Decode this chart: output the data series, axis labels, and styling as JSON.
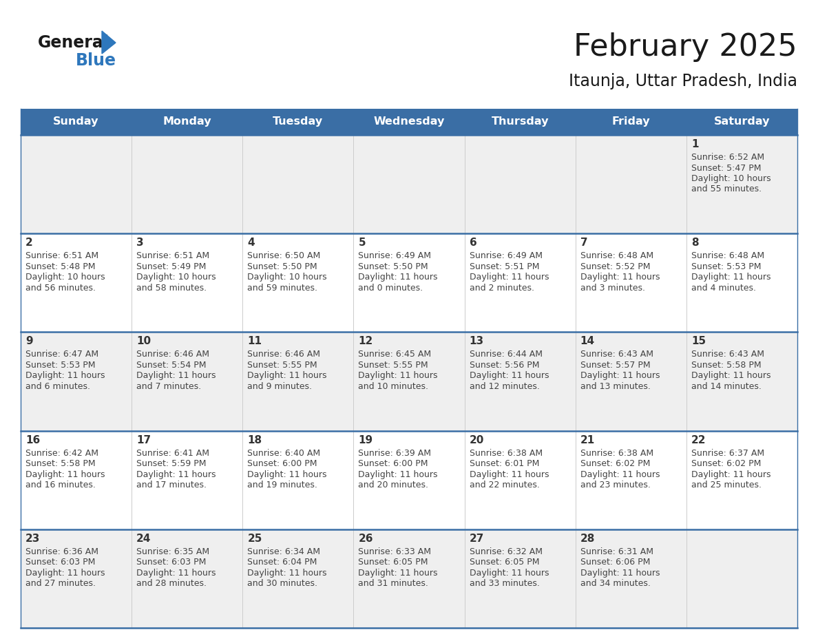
{
  "title": "February 2025",
  "subtitle": "Itaunja, Uttar Pradesh, India",
  "days_of_week": [
    "Sunday",
    "Monday",
    "Tuesday",
    "Wednesday",
    "Thursday",
    "Friday",
    "Saturday"
  ],
  "header_bg": "#3a6ea5",
  "header_text": "#ffffff",
  "row_bg_even": "#efefef",
  "row_bg_odd": "#ffffff",
  "day_num_color": "#333333",
  "info_text_color": "#444444",
  "border_color": "#3a6ea5",
  "title_color": "#1a1a1a",
  "subtitle_color": "#1a1a1a",
  "logo_general_color": "#1a1a1a",
  "logo_blue_color": "#2e77bc",
  "calendar_data": [
    [
      null,
      null,
      null,
      null,
      null,
      null,
      {
        "day": 1,
        "sunrise": "6:52 AM",
        "sunset": "5:47 PM",
        "daylight_h": "10 hours",
        "daylight_m": "and 55 minutes."
      }
    ],
    [
      {
        "day": 2,
        "sunrise": "6:51 AM",
        "sunset": "5:48 PM",
        "daylight_h": "10 hours",
        "daylight_m": "and 56 minutes."
      },
      {
        "day": 3,
        "sunrise": "6:51 AM",
        "sunset": "5:49 PM",
        "daylight_h": "10 hours",
        "daylight_m": "and 58 minutes."
      },
      {
        "day": 4,
        "sunrise": "6:50 AM",
        "sunset": "5:50 PM",
        "daylight_h": "10 hours",
        "daylight_m": "and 59 minutes."
      },
      {
        "day": 5,
        "sunrise": "6:49 AM",
        "sunset": "5:50 PM",
        "daylight_h": "11 hours",
        "daylight_m": "and 0 minutes."
      },
      {
        "day": 6,
        "sunrise": "6:49 AM",
        "sunset": "5:51 PM",
        "daylight_h": "11 hours",
        "daylight_m": "and 2 minutes."
      },
      {
        "day": 7,
        "sunrise": "6:48 AM",
        "sunset": "5:52 PM",
        "daylight_h": "11 hours",
        "daylight_m": "and 3 minutes."
      },
      {
        "day": 8,
        "sunrise": "6:48 AM",
        "sunset": "5:53 PM",
        "daylight_h": "11 hours",
        "daylight_m": "and 4 minutes."
      }
    ],
    [
      {
        "day": 9,
        "sunrise": "6:47 AM",
        "sunset": "5:53 PM",
        "daylight_h": "11 hours",
        "daylight_m": "and 6 minutes."
      },
      {
        "day": 10,
        "sunrise": "6:46 AM",
        "sunset": "5:54 PM",
        "daylight_h": "11 hours",
        "daylight_m": "and 7 minutes."
      },
      {
        "day": 11,
        "sunrise": "6:46 AM",
        "sunset": "5:55 PM",
        "daylight_h": "11 hours",
        "daylight_m": "and 9 minutes."
      },
      {
        "day": 12,
        "sunrise": "6:45 AM",
        "sunset": "5:55 PM",
        "daylight_h": "11 hours",
        "daylight_m": "and 10 minutes."
      },
      {
        "day": 13,
        "sunrise": "6:44 AM",
        "sunset": "5:56 PM",
        "daylight_h": "11 hours",
        "daylight_m": "and 12 minutes."
      },
      {
        "day": 14,
        "sunrise": "6:43 AM",
        "sunset": "5:57 PM",
        "daylight_h": "11 hours",
        "daylight_m": "and 13 minutes."
      },
      {
        "day": 15,
        "sunrise": "6:43 AM",
        "sunset": "5:58 PM",
        "daylight_h": "11 hours",
        "daylight_m": "and 14 minutes."
      }
    ],
    [
      {
        "day": 16,
        "sunrise": "6:42 AM",
        "sunset": "5:58 PM",
        "daylight_h": "11 hours",
        "daylight_m": "and 16 minutes."
      },
      {
        "day": 17,
        "sunrise": "6:41 AM",
        "sunset": "5:59 PM",
        "daylight_h": "11 hours",
        "daylight_m": "and 17 minutes."
      },
      {
        "day": 18,
        "sunrise": "6:40 AM",
        "sunset": "6:00 PM",
        "daylight_h": "11 hours",
        "daylight_m": "and 19 minutes."
      },
      {
        "day": 19,
        "sunrise": "6:39 AM",
        "sunset": "6:00 PM",
        "daylight_h": "11 hours",
        "daylight_m": "and 20 minutes."
      },
      {
        "day": 20,
        "sunrise": "6:38 AM",
        "sunset": "6:01 PM",
        "daylight_h": "11 hours",
        "daylight_m": "and 22 minutes."
      },
      {
        "day": 21,
        "sunrise": "6:38 AM",
        "sunset": "6:02 PM",
        "daylight_h": "11 hours",
        "daylight_m": "and 23 minutes."
      },
      {
        "day": 22,
        "sunrise": "6:37 AM",
        "sunset": "6:02 PM",
        "daylight_h": "11 hours",
        "daylight_m": "and 25 minutes."
      }
    ],
    [
      {
        "day": 23,
        "sunrise": "6:36 AM",
        "sunset": "6:03 PM",
        "daylight_h": "11 hours",
        "daylight_m": "and 27 minutes."
      },
      {
        "day": 24,
        "sunrise": "6:35 AM",
        "sunset": "6:03 PM",
        "daylight_h": "11 hours",
        "daylight_m": "and 28 minutes."
      },
      {
        "day": 25,
        "sunrise": "6:34 AM",
        "sunset": "6:04 PM",
        "daylight_h": "11 hours",
        "daylight_m": "and 30 minutes."
      },
      {
        "day": 26,
        "sunrise": "6:33 AM",
        "sunset": "6:05 PM",
        "daylight_h": "11 hours",
        "daylight_m": "and 31 minutes."
      },
      {
        "day": 27,
        "sunrise": "6:32 AM",
        "sunset": "6:05 PM",
        "daylight_h": "11 hours",
        "daylight_m": "and 33 minutes."
      },
      {
        "day": 28,
        "sunrise": "6:31 AM",
        "sunset": "6:06 PM",
        "daylight_h": "11 hours",
        "daylight_m": "and 34 minutes."
      },
      null
    ]
  ]
}
